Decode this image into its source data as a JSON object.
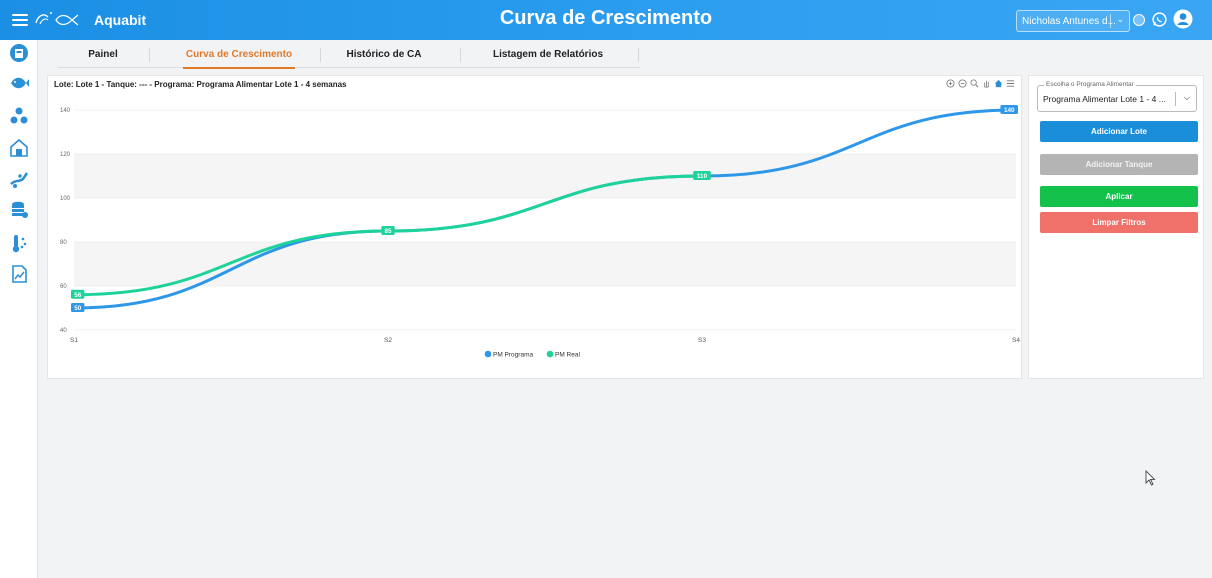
{
  "topbar": {
    "brand": "Aquabit",
    "title": "Curva de Crescimento",
    "user": "Nicholas Antunes d...",
    "accent": "#1b8fe3"
  },
  "sidebar": {
    "icons": [
      "dashboard-icon",
      "fish-icon",
      "eggs-icon",
      "farm-icon",
      "feed-icon",
      "database-icon",
      "thermometer-icon",
      "report-icon"
    ]
  },
  "tabs": [
    {
      "label": "Painel",
      "active": false
    },
    {
      "label": "Curva de Crescimento",
      "active": true
    },
    {
      "label": "Histórico de CA",
      "active": false
    },
    {
      "label": "Listagem de Relatórios",
      "active": false
    }
  ],
  "chart_panel": {
    "heading": "Lote: Lote 1 - Tanque: --- - Programa: Programa Alimentar Lote 1 - 4 semanas",
    "toolbar": [
      "zoom-in-icon",
      "zoom-out-icon",
      "zoom-search-icon",
      "pan-icon",
      "home-icon",
      "menu-icon"
    ]
  },
  "chart_data": {
    "type": "line",
    "categories": [
      "S1",
      "S2",
      "S3",
      "S4"
    ],
    "ylim": [
      40,
      140
    ],
    "yticks": [
      "140",
      "120",
      "100",
      "80",
      "60",
      "40"
    ],
    "grid": true,
    "legend_position": "bottom",
    "series": [
      {
        "name": "PM Programa",
        "values": [
          50,
          85,
          110,
          140
        ],
        "color": "#2e97e8",
        "labels": [
          "50",
          "85",
          "110",
          "140"
        ]
      },
      {
        "name": "PM Real",
        "values": [
          56,
          85,
          110,
          null
        ],
        "color": "#1ed39a",
        "labels": [
          "56",
          "85",
          "110",
          ""
        ]
      }
    ]
  },
  "right_panel": {
    "select_label": "Escolha o Programa Alimentar",
    "select_value": "Programa Alimentar Lote 1 - 4 ...",
    "buttons": {
      "add_lot": "Adicionar Lote",
      "add_tank": "Adicionar Tanque",
      "apply": "Aplicar",
      "clear": "Limpar Filtros"
    }
  }
}
